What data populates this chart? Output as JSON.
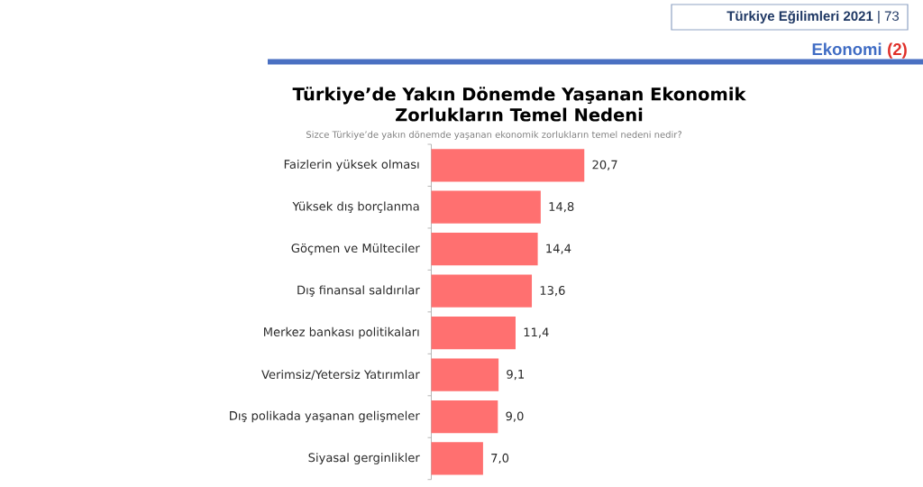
{
  "chart_data": {
    "type": "bar",
    "orientation": "horizontal",
    "title": "Türkiye’de Yakın Dönemde Yaşanan Ekonomik Zorlukların Temel Nedeni",
    "subtitle": "Sizce Türkiye’de yakın dönemde yaşanan ekonomik zorlukların temel nedeni nedir?",
    "categories": [
      "Faizlerin yüksek olması",
      "Yüksek dış borçlanma",
      "Göçmen ve Mülteciler",
      "Dış finansal saldırılar",
      "Merkez bankası politikaları",
      "Verimsiz/Yetersiz Yatırımlar",
      "Dış polikada yaşanan gelişmeler",
      "Siyasal gerginlikler"
    ],
    "values": [
      20.7,
      14.8,
      14.4,
      13.6,
      11.4,
      9.1,
      9.0,
      7.0
    ],
    "value_labels": [
      "20,7",
      "14,8",
      "14,4",
      "13,6",
      "11,4",
      "9,1",
      "9,0",
      "7,0"
    ],
    "color": "#ff7070",
    "annotations": [
      "**Türkiye Eğilimleri 2021** | 73",
      "Ekonomi",
      "(2)"
    ]
  }
}
